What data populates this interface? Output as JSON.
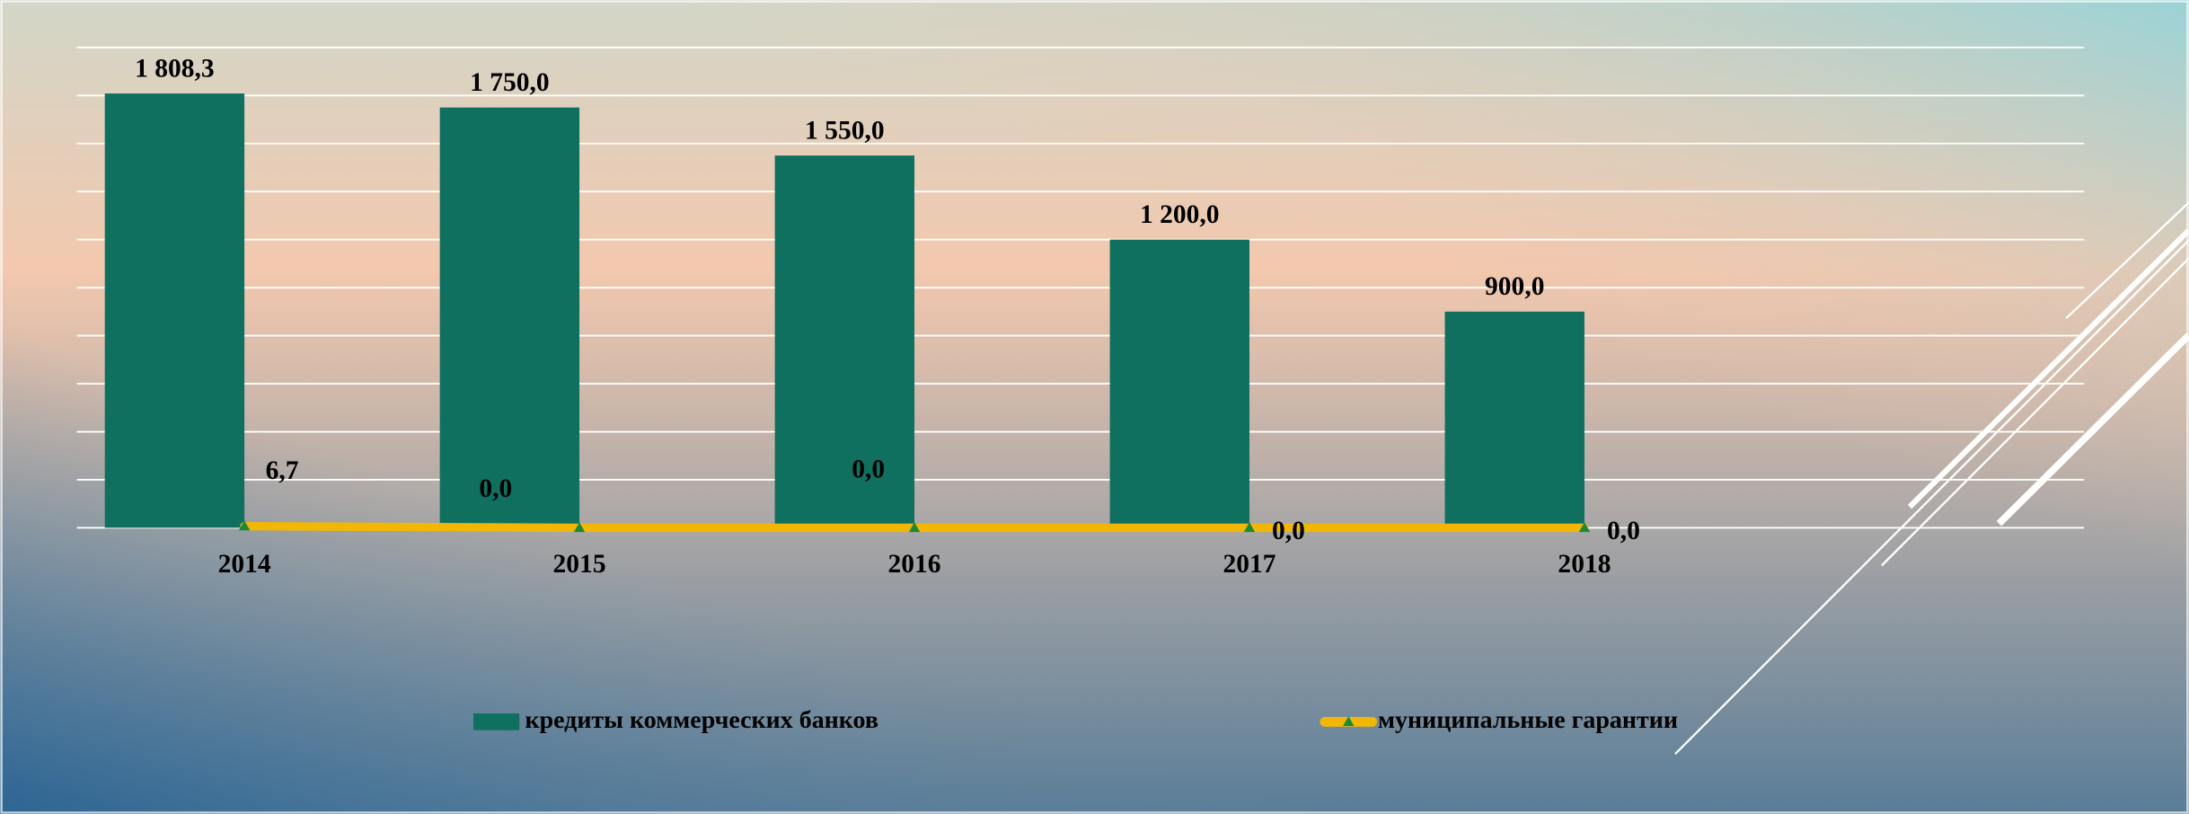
{
  "chart_data": {
    "type": "bar",
    "categories": [
      "2014",
      "2015",
      "2016",
      "2017",
      "2018"
    ],
    "series": [
      {
        "name": "кредиты коммерческих банков",
        "type": "bar",
        "color": "#0f7060",
        "values": [
          1808.3,
          1750,
          1550,
          1200,
          900
        ],
        "value_labels": [
          "1 808,3",
          "1 750,0",
          "1 550,0",
          "1 200,0",
          "900,0"
        ]
      },
      {
        "name": "муниципальные гарантии",
        "type": "line",
        "color": "#f2b705",
        "marker_color": "#1a8a3a",
        "values": [
          6.7,
          0,
          0,
          0,
          0
        ],
        "value_labels": [
          "6,7",
          "0,0",
          "0,0",
          "0,0",
          "0,0"
        ]
      }
    ],
    "ylim": [
      0,
      2000
    ],
    "yticks": [
      0,
      200,
      400,
      600,
      800,
      1000,
      1200,
      1400,
      1600,
      1800,
      2000
    ],
    "grid": true,
    "legend": "bottom"
  }
}
